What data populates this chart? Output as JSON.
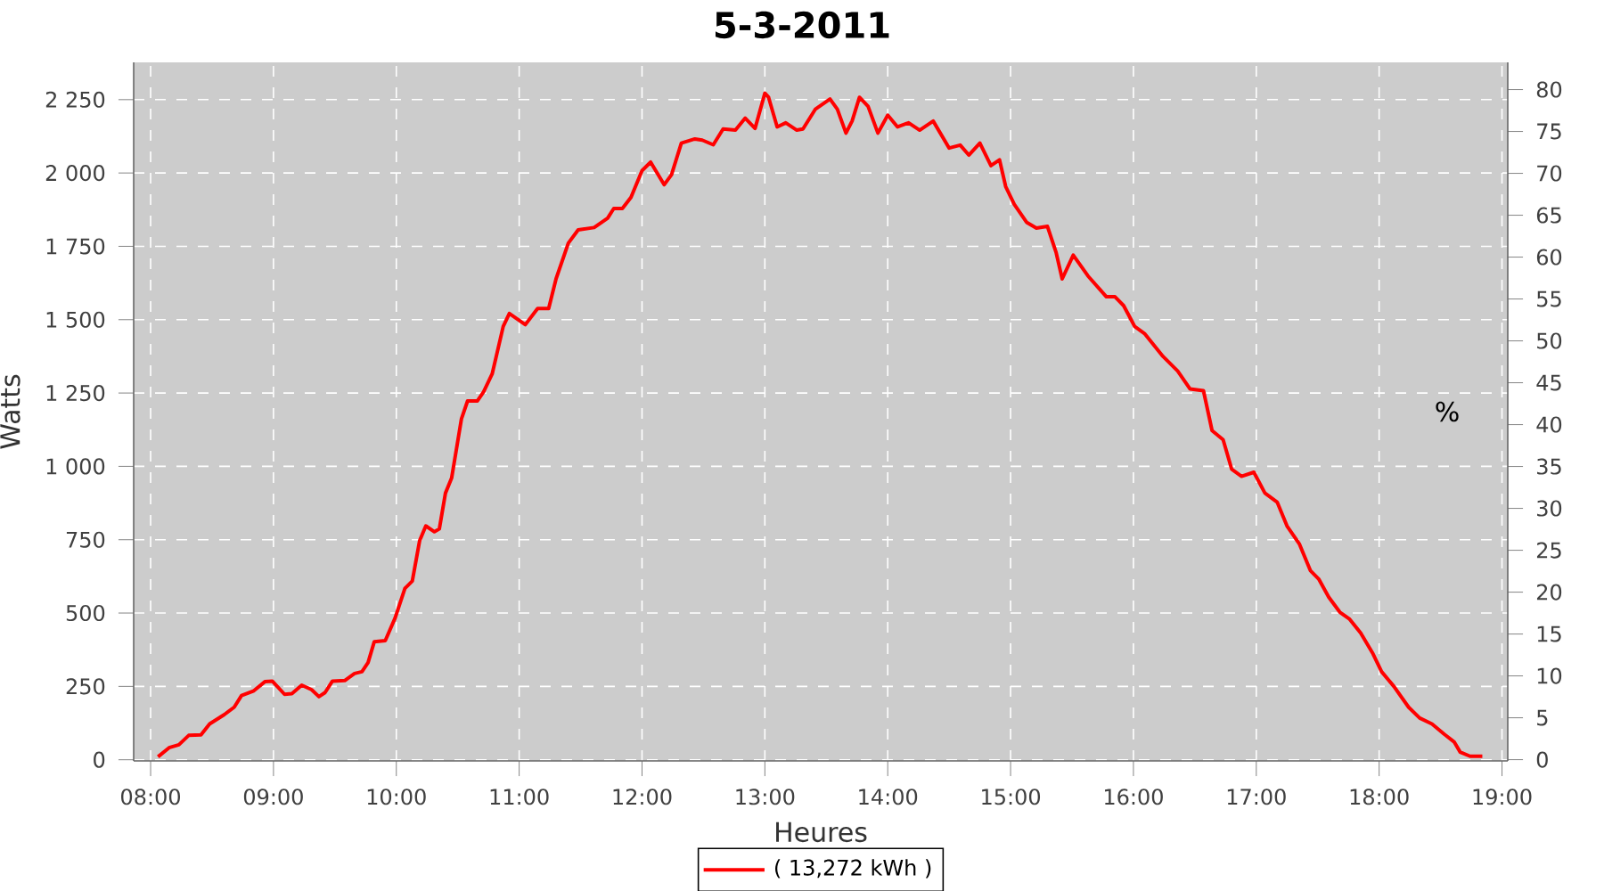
{
  "chart_data": {
    "type": "line",
    "title": "5-3-2011",
    "xlabel": "Heures",
    "ylabel": "Watts",
    "y2label": "%",
    "x": [
      8.06,
      8.15,
      8.23,
      8.31,
      8.41,
      8.48,
      8.6,
      8.68,
      8.74,
      8.84,
      8.93,
      8.99,
      9.09,
      9.15,
      9.23,
      9.31,
      9.37,
      9.42,
      9.48,
      9.58,
      9.66,
      9.72,
      9.77,
      9.82,
      9.91,
      9.99,
      10.07,
      10.13,
      10.19,
      10.24,
      10.31,
      10.35,
      10.4,
      10.45,
      10.53,
      10.58,
      10.66,
      10.71,
      10.78,
      10.87,
      10.92,
      11.05,
      11.15,
      11.24,
      11.3,
      11.4,
      11.48,
      11.61,
      11.72,
      11.77,
      11.84,
      11.91,
      12.0,
      12.07,
      12.18,
      12.24,
      12.32,
      12.43,
      12.49,
      12.58,
      12.66,
      12.76,
      12.84,
      12.92,
      13.0,
      13.03,
      13.1,
      13.17,
      13.26,
      13.31,
      13.41,
      13.53,
      13.59,
      13.66,
      13.71,
      13.77,
      13.84,
      13.92,
      14.0,
      14.08,
      14.17,
      14.26,
      14.37,
      14.5,
      14.59,
      14.66,
      14.75,
      14.84,
      14.91,
      14.96,
      15.03,
      15.13,
      15.21,
      15.3,
      15.37,
      15.42,
      15.51,
      15.63,
      15.78,
      15.85,
      15.92,
      16.01,
      16.09,
      16.24,
      16.36,
      16.46,
      16.57,
      16.64,
      16.73,
      16.8,
      16.88,
      16.98,
      17.07,
      17.17,
      17.25,
      17.35,
      17.44,
      17.51,
      17.59,
      17.68,
      17.76,
      17.85,
      17.95,
      18.02,
      18.12,
      18.24,
      18.33,
      18.43,
      18.53,
      18.61,
      18.66,
      18.74,
      18.84
    ],
    "series": [
      {
        "name": "( 13,272 kWh )",
        "color": "#ff0000",
        "values": [
          10,
          41,
          51,
          83,
          85,
          122,
          154,
          179,
          219,
          235,
          266,
          268,
          223,
          225,
          254,
          239,
          215,
          229,
          268,
          270,
          294,
          300,
          331,
          402,
          406,
          483,
          584,
          609,
          747,
          797,
          777,
          787,
          909,
          960,
          1162,
          1223,
          1223,
          1254,
          1315,
          1477,
          1521,
          1483,
          1538,
          1538,
          1639,
          1761,
          1806,
          1814,
          1846,
          1879,
          1879,
          1917,
          2008,
          2037,
          1960,
          1994,
          2102,
          2116,
          2112,
          2096,
          2150,
          2146,
          2187,
          2152,
          2272,
          2258,
          2157,
          2171,
          2146,
          2150,
          2217,
          2252,
          2217,
          2136,
          2177,
          2258,
          2227,
          2136,
          2197,
          2157,
          2171,
          2146,
          2177,
          2085,
          2095,
          2061,
          2102,
          2025,
          2045,
          1954,
          1893,
          1832,
          1812,
          1818,
          1730,
          1639,
          1720,
          1649,
          1578,
          1578,
          1548,
          1477,
          1453,
          1375,
          1325,
          1264,
          1258,
          1122,
          1091,
          990,
          966,
          980,
          909,
          878,
          797,
          736,
          645,
          615,
          554,
          503,
          479,
          432,
          361,
          300,
          250,
          179,
          142,
          122,
          87,
          61,
          26,
          12,
          12
        ]
      }
    ],
    "xlim": [
      7.862,
      19.047
    ],
    "ylim": [
      -4,
      2377
    ],
    "y2lim": [
      -0.15,
      83.25
    ],
    "xticks": [
      {
        "value": 8,
        "label": "08:00"
      },
      {
        "value": 9,
        "label": "09:00"
      },
      {
        "value": 10,
        "label": "10:00"
      },
      {
        "value": 11,
        "label": "11:00"
      },
      {
        "value": 12,
        "label": "12:00"
      },
      {
        "value": 13,
        "label": "13:00"
      },
      {
        "value": 14,
        "label": "14:00"
      },
      {
        "value": 15,
        "label": "15:00"
      },
      {
        "value": 16,
        "label": "16:00"
      },
      {
        "value": 17,
        "label": "17:00"
      },
      {
        "value": 18,
        "label": "18:00"
      },
      {
        "value": 19,
        "label": "19:00"
      }
    ],
    "yticks": [
      0,
      250,
      500,
      750,
      {
        "value": 1000,
        "label": "1 000"
      },
      {
        "value": 1250,
        "label": "1 250"
      },
      {
        "value": 1500,
        "label": "1 500"
      },
      {
        "value": 1750,
        "label": "1 750"
      },
      {
        "value": 2000,
        "label": "2 000"
      },
      {
        "value": 2250,
        "label": "2 250"
      }
    ],
    "y2ticks": [
      0,
      5,
      10,
      15,
      20,
      25,
      30,
      35,
      40,
      45,
      50,
      55,
      60,
      65,
      70,
      75,
      80
    ],
    "grid": true,
    "legend": "bottom",
    "marker": "none",
    "line_style": "solid"
  }
}
